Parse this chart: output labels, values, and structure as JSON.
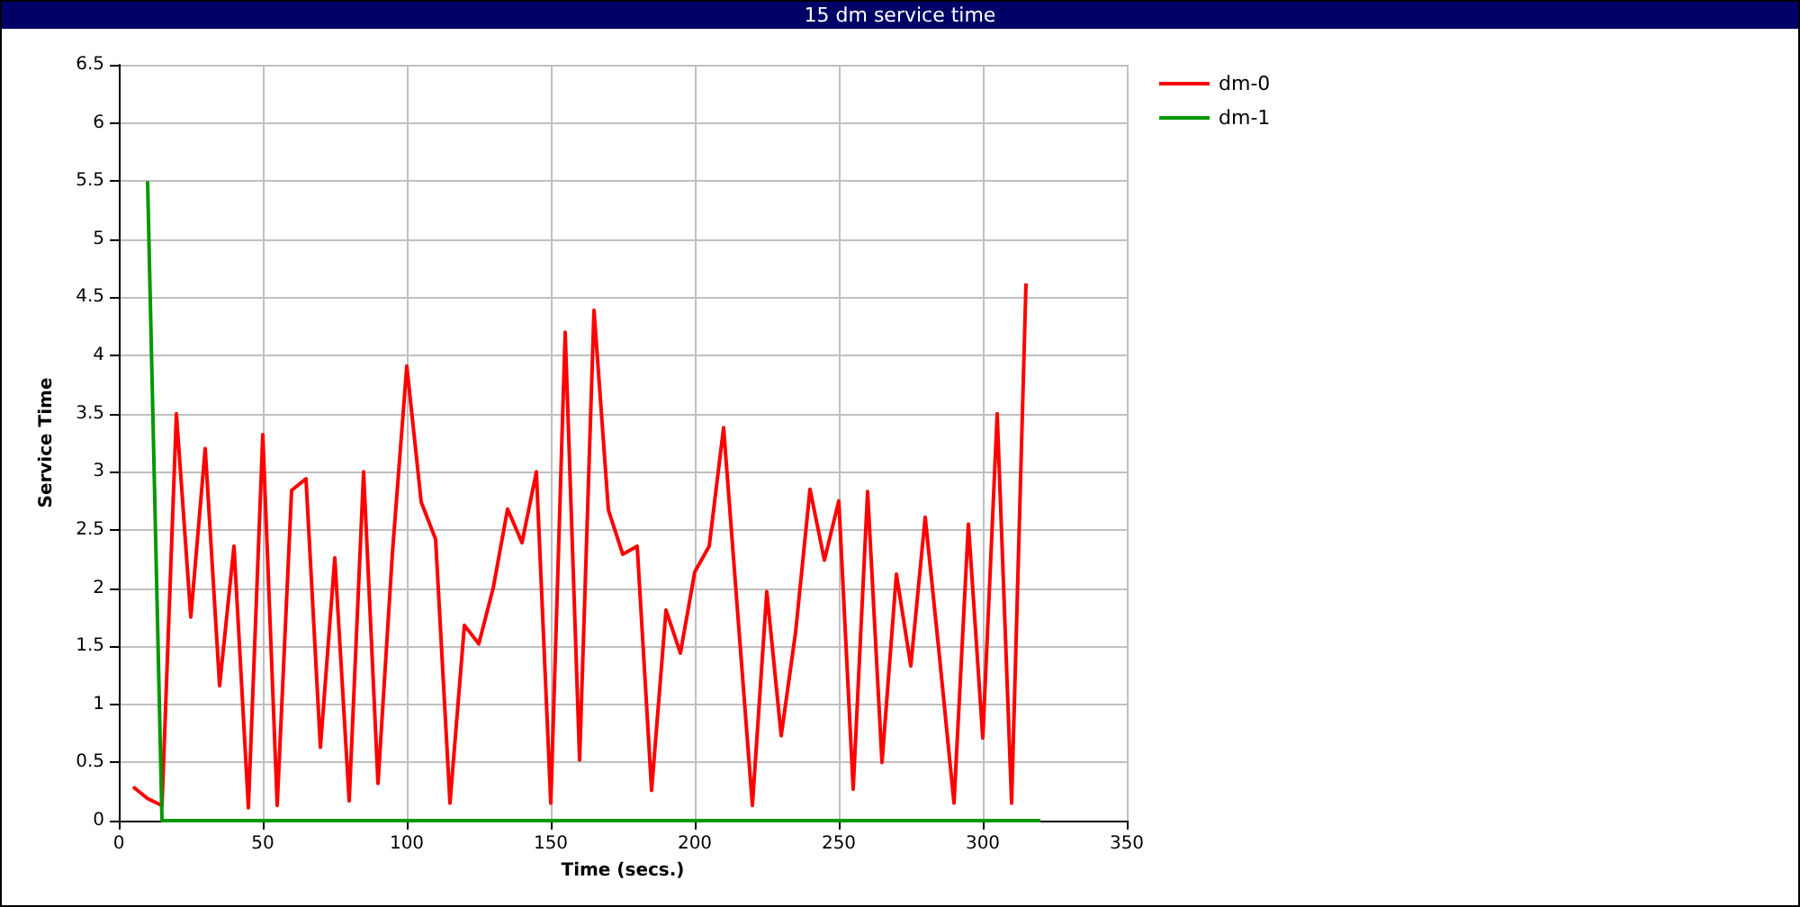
{
  "chart_data": {
    "type": "line",
    "title": "15 dm service time",
    "xlabel": "Time (secs.)",
    "ylabel": "Service Time",
    "series": [
      {
        "name": "dm-0",
        "color": "#ff0000",
        "x": [
          5,
          10,
          15,
          20,
          25,
          30,
          35,
          40,
          45,
          50,
          55,
          60,
          65,
          70,
          75,
          80,
          85,
          90,
          95,
          100,
          105,
          110,
          115,
          120,
          125,
          130,
          135,
          140,
          145,
          150,
          155,
          160,
          165,
          170,
          175,
          180,
          185,
          190,
          195,
          200,
          205,
          210,
          215,
          220,
          225,
          230,
          235,
          240,
          245,
          250,
          255,
          260,
          265,
          270,
          275,
          280,
          285,
          290,
          295,
          300,
          305,
          310,
          315
        ],
        "values": [
          0.29,
          0.19,
          0.13,
          3.5,
          1.75,
          3.2,
          1.16,
          2.36,
          0.11,
          3.32,
          0.13,
          2.84,
          2.94,
          0.63,
          2.26,
          0.17,
          3.0,
          0.32,
          2.3,
          3.91,
          2.74,
          2.42,
          0.15,
          1.68,
          1.52,
          2.0,
          2.68,
          2.39,
          3.0,
          0.15,
          4.2,
          0.52,
          4.39,
          2.67,
          2.29,
          2.36,
          0.26,
          1.81,
          1.44,
          2.14,
          2.36,
          3.38,
          1.75,
          0.13,
          1.97,
          0.73,
          1.62,
          2.85,
          2.24,
          2.75,
          0.27,
          2.83,
          0.5,
          2.12,
          1.33,
          2.61,
          1.4,
          0.15,
          2.55,
          0.71,
          3.5,
          0.15,
          4.62
        ]
      },
      {
        "name": "dm-1",
        "color": "#009900",
        "x": [
          10,
          15,
          320
        ],
        "values": [
          5.5,
          0,
          0
        ]
      }
    ],
    "xlim": [
      0,
      350
    ],
    "xticks": [
      0,
      50,
      100,
      150,
      200,
      250,
      300,
      350
    ],
    "ylim": [
      0,
      6.5
    ],
    "yticks": [
      0,
      0.5,
      1,
      1.5,
      2,
      2.5,
      3,
      3.5,
      4,
      4.5,
      5,
      5.5,
      6,
      6.5
    ],
    "grid": true,
    "legend": "top right",
    "marker": "none",
    "line_style": "solid"
  }
}
